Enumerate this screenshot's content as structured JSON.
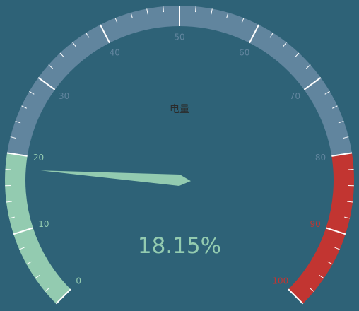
{
  "chart_data": {
    "type": "gauge",
    "title": "电量",
    "value": 18.15,
    "value_label": "18.15%",
    "min": 0,
    "max": 100,
    "tick_labels": [
      "0",
      "10",
      "20",
      "30",
      "40",
      "50",
      "60",
      "70",
      "80",
      "90",
      "100"
    ],
    "bands": [
      {
        "from": 0,
        "to": 20,
        "color": "#93cbb0"
      },
      {
        "from": 20,
        "to": 80,
        "color": "#61859e"
      },
      {
        "from": 80,
        "to": 100,
        "color": "#c23531"
      }
    ],
    "pointer_color": "#93cbb0",
    "value_color": "#93cbb0"
  }
}
